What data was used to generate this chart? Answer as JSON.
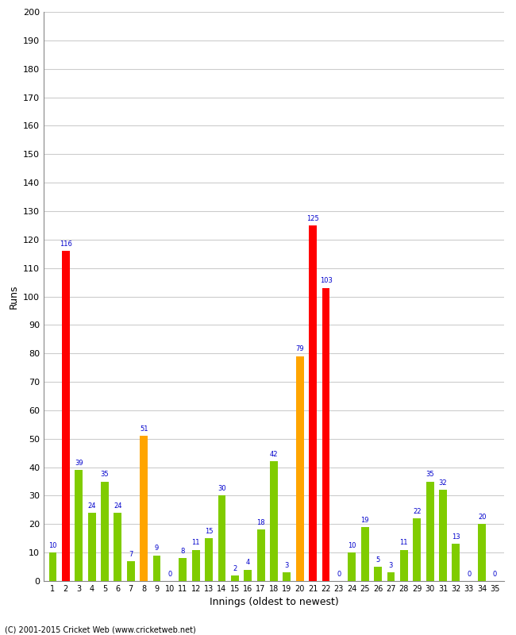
{
  "innings": [
    1,
    2,
    3,
    4,
    5,
    6,
    7,
    8,
    9,
    10,
    11,
    12,
    13,
    14,
    15,
    16,
    17,
    18,
    19,
    20,
    21,
    22,
    23,
    24,
    25,
    26,
    27,
    28,
    29,
    30,
    31,
    32,
    33,
    34,
    35
  ],
  "values": [
    10,
    116,
    39,
    24,
    35,
    24,
    7,
    51,
    9,
    0,
    8,
    11,
    15,
    30,
    2,
    4,
    18,
    42,
    3,
    79,
    125,
    103,
    0,
    10,
    19,
    5,
    3,
    11,
    22,
    35,
    32,
    13,
    0,
    20,
    0
  ],
  "colors": [
    "#80cc00",
    "#ff0000",
    "#80cc00",
    "#80cc00",
    "#80cc00",
    "#80cc00",
    "#80cc00",
    "#ffa500",
    "#80cc00",
    "#80cc00",
    "#80cc00",
    "#80cc00",
    "#80cc00",
    "#80cc00",
    "#80cc00",
    "#80cc00",
    "#80cc00",
    "#80cc00",
    "#80cc00",
    "#ffa500",
    "#ff0000",
    "#ff0000",
    "#80cc00",
    "#80cc00",
    "#80cc00",
    "#80cc00",
    "#80cc00",
    "#80cc00",
    "#80cc00",
    "#80cc00",
    "#80cc00",
    "#80cc00",
    "#80cc00",
    "#80cc00",
    "#80cc00"
  ],
  "x_labels": [
    "1",
    "2",
    "3",
    "4",
    "5",
    "6",
    "7",
    "8",
    "9",
    "10",
    "11",
    "12",
    "13",
    "14",
    "15",
    "16",
    "17",
    "18",
    "19",
    "20",
    "21",
    "22",
    "23",
    "24",
    "25",
    "26",
    "27",
    "28",
    "29",
    "30",
    "31",
    "32",
    "33",
    "34",
    "35"
  ],
  "ylabel": "Runs",
  "xlabel": "Innings (oldest to newest)",
  "ylim": [
    0,
    200
  ],
  "yticks": [
    0,
    10,
    20,
    30,
    40,
    50,
    60,
    70,
    80,
    90,
    100,
    110,
    120,
    130,
    140,
    150,
    160,
    170,
    180,
    190,
    200
  ],
  "bg_color": "#ffffff",
  "grid_color": "#cccccc",
  "label_color": "#0000cc",
  "footer": "(C) 2001-2015 Cricket Web (www.cricketweb.net)"
}
